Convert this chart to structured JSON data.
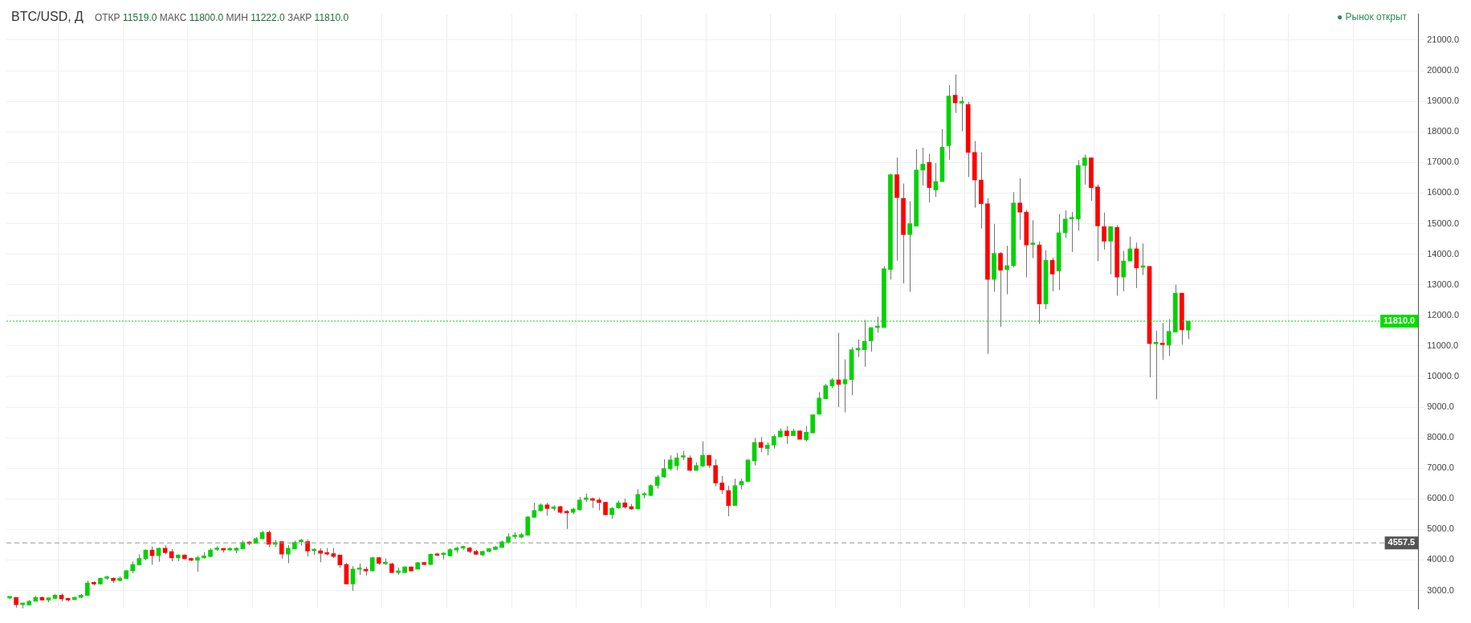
{
  "chart_data": {
    "type": "candlestick",
    "title": "BTC/USD, Д",
    "subtitle": "ОТКР 11519.0 МАКС 11800.0 МИН 11222.0 ЗАКР 11810.0",
    "annotations": [
      "● Рынок открыт"
    ],
    "categories": [
      null,
      null,
      null,
      null,
      null,
      null,
      null,
      null,
      null,
      null,
      null,
      null,
      null,
      null,
      null,
      null,
      null,
      null,
      null,
      null,
      null,
      null,
      null,
      null,
      null,
      null,
      null,
      null,
      null,
      null,
      null,
      null,
      null,
      null,
      null,
      null,
      null,
      null,
      null,
      null,
      null,
      null,
      null,
      null,
      null,
      null,
      null,
      null,
      null,
      null,
      null,
      null,
      null,
      null,
      null,
      null,
      null,
      null,
      null,
      null,
      null,
      null,
      null,
      null,
      null,
      null,
      null,
      null,
      null,
      null,
      null,
      null,
      null,
      null,
      null,
      null,
      null,
      null,
      null,
      null,
      null,
      null,
      null,
      null,
      null,
      null,
      null,
      null,
      null,
      null,
      null,
      null,
      null,
      null,
      null,
      null,
      null,
      null,
      null,
      null,
      null,
      null,
      null,
      null,
      null,
      null,
      null,
      null,
      null,
      null,
      null,
      null,
      null,
      null,
      null,
      null,
      null,
      null,
      null,
      null,
      null,
      null,
      null,
      null,
      null,
      null,
      null,
      null,
      null,
      null,
      null,
      null,
      null,
      null,
      null,
      null,
      null,
      null,
      null,
      null,
      null,
      null,
      null,
      null,
      null,
      null,
      null,
      null,
      null,
      null,
      null,
      null,
      null,
      null,
      null,
      null,
      null,
      null,
      null,
      null,
      null,
      null,
      null,
      null,
      null,
      null,
      null,
      null,
      null,
      null,
      null,
      null,
      null,
      null,
      null,
      null,
      null,
      null,
      null,
      null,
      null,
      null,
      null,
      null,
      null,
      null,
      null,
      null,
      null,
      null,
      null,
      null,
      null,
      null,
      null,
      null,
      null,
      null,
      null,
      null,
      null,
      null,
      null,
      null,
      null,
      null,
      null,
      null,
      null,
      null,
      null,
      null,
      null,
      null,
      null,
      null,
      null,
      null
    ],
    "ohlc": [
      [
        2755,
        2790,
        2720,
        2755
      ],
      [
        2775,
        2775,
        2440,
        2540
      ],
      [
        2540,
        2600,
        2420,
        2540
      ],
      [
        2525,
        2685,
        2510,
        2650
      ],
      [
        2650,
        2825,
        2640,
        2775
      ],
      [
        2775,
        2800,
        2670,
        2690
      ],
      [
        2690,
        2760,
        2620,
        2760
      ],
      [
        2740,
        2885,
        2720,
        2850
      ],
      [
        2850,
        2900,
        2640,
        2725
      ],
      [
        2735,
        2760,
        2640,
        2690
      ],
      [
        2700,
        2800,
        2690,
        2775
      ],
      [
        2775,
        2885,
        2760,
        2850
      ],
      [
        2840,
        3325,
        2840,
        3250
      ],
      [
        3250,
        3300,
        3170,
        3215
      ],
      [
        3215,
        3425,
        3190,
        3400
      ],
      [
        3400,
        3480,
        3350,
        3400
      ],
      [
        3400,
        3435,
        3250,
        3325
      ],
      [
        3325,
        3460,
        3310,
        3400
      ],
      [
        3390,
        3675,
        3380,
        3650
      ],
      [
        3640,
        3950,
        3570,
        3850
      ],
      [
        3840,
        4185,
        3820,
        4050
      ],
      [
        4040,
        4340,
        3990,
        4325
      ],
      [
        4325,
        4440,
        3840,
        4140
      ],
      [
        4140,
        4400,
        3940,
        4385
      ],
      [
        4385,
        4475,
        4190,
        4240
      ],
      [
        4275,
        4360,
        3960,
        4065
      ],
      [
        4065,
        4185,
        3960,
        4160
      ],
      [
        4160,
        4185,
        4025,
        4040
      ],
      [
        4050,
        4075,
        3965,
        3990
      ],
      [
        3990,
        4135,
        3615,
        4075
      ],
      [
        4065,
        4260,
        4045,
        4135
      ],
      [
        4115,
        4385,
        4090,
        4325
      ],
      [
        4340,
        4450,
        4300,
        4345
      ],
      [
        4360,
        4365,
        4240,
        4325
      ],
      [
        4325,
        4410,
        4300,
        4325
      ],
      [
        4315,
        4420,
        4220,
        4385
      ],
      [
        4365,
        4635,
        4340,
        4575
      ],
      [
        4565,
        4615,
        4490,
        4535
      ],
      [
        4540,
        4750,
        4530,
        4700
      ],
      [
        4690,
        4950,
        4675,
        4900
      ],
      [
        4900,
        4960,
        4420,
        4515
      ],
      [
        4515,
        4650,
        4420,
        4575
      ],
      [
        4600,
        4600,
        4040,
        4190
      ],
      [
        4190,
        4485,
        3890,
        4385
      ],
      [
        4365,
        4635,
        4365,
        4575
      ],
      [
        4600,
        4685,
        4470,
        4600
      ],
      [
        4600,
        4675,
        4115,
        4290
      ],
      [
        4300,
        4385,
        4165,
        4300
      ],
      [
        4300,
        4390,
        3925,
        4215
      ],
      [
        4235,
        4390,
        4150,
        4190
      ],
      [
        4210,
        4390,
        4060,
        4115
      ],
      [
        4160,
        4160,
        3740,
        3840
      ],
      [
        3850,
        3900,
        3215,
        3215
      ],
      [
        3215,
        3800,
        2990,
        3700
      ],
      [
        3690,
        3885,
        3510,
        3690
      ],
      [
        3675,
        3775,
        3490,
        3640
      ],
      [
        3640,
        4100,
        3640,
        4075
      ],
      [
        4075,
        4100,
        3840,
        3890
      ],
      [
        3875,
        4050,
        3840,
        3875
      ],
      [
        3875,
        3910,
        3560,
        3590
      ],
      [
        3590,
        3750,
        3515,
        3590
      ],
      [
        3590,
        3790,
        3565,
        3775
      ],
      [
        3775,
        3775,
        3640,
        3640
      ],
      [
        3700,
        3930,
        3690,
        3910
      ],
      [
        3915,
        3930,
        3840,
        3850
      ],
      [
        3850,
        4210,
        3840,
        4185
      ],
      [
        4195,
        4235,
        4130,
        4150
      ],
      [
        4175,
        4245,
        4020,
        4175
      ],
      [
        4130,
        4380,
        4110,
        4335
      ],
      [
        4325,
        4435,
        4240,
        4390
      ],
      [
        4390,
        4460,
        4335,
        4390
      ],
      [
        4390,
        4425,
        4220,
        4280
      ],
      [
        4280,
        4330,
        4165,
        4185
      ],
      [
        4165,
        4310,
        4120,
        4280
      ],
      [
        4280,
        4390,
        4255,
        4370
      ],
      [
        4345,
        4460,
        4335,
        4425
      ],
      [
        4410,
        4630,
        4390,
        4595
      ],
      [
        4580,
        4875,
        4545,
        4760
      ],
      [
        4760,
        4910,
        4690,
        4760
      ],
      [
        4740,
        4890,
        4710,
        4830
      ],
      [
        4810,
        5430,
        4790,
        5405
      ],
      [
        5395,
        5870,
        5385,
        5620
      ],
      [
        5610,
        5845,
        5580,
        5805
      ],
      [
        5805,
        5870,
        5450,
        5680
      ],
      [
        5680,
        5790,
        5610,
        5735
      ],
      [
        5745,
        5770,
        5505,
        5555
      ],
      [
        5590,
        5630,
        5015,
        5540
      ],
      [
        5555,
        5705,
        5500,
        5665
      ],
      [
        5645,
        6065,
        5610,
        5960
      ],
      [
        5980,
        6165,
        5890,
        5980
      ],
      [
        5995,
        6040,
        5700,
        5950
      ],
      [
        5960,
        6040,
        5625,
        5880
      ],
      [
        5890,
        5890,
        5460,
        5475
      ],
      [
        5475,
        5725,
        5350,
        5690
      ],
      [
        5700,
        5940,
        5675,
        5870
      ],
      [
        5870,
        6005,
        5680,
        5725
      ],
      [
        5745,
        5835,
        5635,
        5670
      ],
      [
        5670,
        6310,
        5655,
        6140
      ],
      [
        6120,
        6220,
        6015,
        6120
      ],
      [
        6105,
        6470,
        6085,
        6435
      ],
      [
        6435,
        6775,
        6335,
        6715
      ],
      [
        6715,
        7295,
        6685,
        6990
      ],
      [
        6980,
        7420,
        6925,
        7270
      ],
      [
        7080,
        7500,
        6935,
        7340
      ],
      [
        7360,
        7565,
        7270,
        7360
      ],
      [
        7340,
        7420,
        6910,
        6930
      ],
      [
        6930,
        7190,
        6930,
        7090
      ],
      [
        7070,
        7880,
        7035,
        7420
      ],
      [
        7420,
        7420,
        7010,
        7090
      ],
      [
        7090,
        7290,
        6410,
        6515
      ],
      [
        6515,
        6750,
        6160,
        6290
      ],
      [
        6265,
        6425,
        5430,
        5780
      ],
      [
        5780,
        6660,
        5780,
        6435
      ],
      [
        6455,
        6660,
        6310,
        6570
      ],
      [
        6570,
        7270,
        6570,
        7270
      ],
      [
        7240,
        7995,
        7090,
        7845
      ],
      [
        7845,
        8020,
        7520,
        7675
      ],
      [
        7645,
        7845,
        7420,
        7755
      ],
      [
        7755,
        8105,
        7645,
        8040
      ],
      [
        8025,
        8300,
        8015,
        8220
      ],
      [
        8220,
        8370,
        7800,
        8065
      ],
      [
        8065,
        8290,
        8065,
        8220
      ],
      [
        8220,
        8240,
        7945,
        7945
      ],
      [
        7935,
        8380,
        7870,
        8175
      ],
      [
        8155,
        8750,
        8140,
        8750
      ],
      [
        8765,
        9485,
        8755,
        9295
      ],
      [
        9270,
        9755,
        9260,
        9700
      ],
      [
        9690,
        9950,
        9620,
        9890
      ],
      [
        9890,
        11430,
        9000,
        9740
      ],
      [
        9760,
        10560,
        8830,
        9900
      ],
      [
        9900,
        10960,
        9390,
        10875
      ],
      [
        10870,
        11210,
        10640,
        10870
      ],
      [
        10875,
        11850,
        10320,
        11150
      ],
      [
        11165,
        11600,
        10815,
        11600
      ],
      [
        11600,
        11960,
        11430,
        11600
      ],
      [
        11600,
        13610,
        11600,
        13525
      ],
      [
        13500,
        16630,
        13170,
        16600
      ],
      [
        16600,
        17160,
        13790,
        15850
      ],
      [
        15825,
        16310,
        13040,
        14640
      ],
      [
        14640,
        15730,
        12770,
        15000
      ],
      [
        14915,
        17430,
        14915,
        16750
      ],
      [
        16750,
        17480,
        16240,
        16950
      ],
      [
        17000,
        17280,
        15690,
        16175
      ],
      [
        16100,
        16980,
        15870,
        16375
      ],
      [
        16375,
        18090,
        16375,
        17500
      ],
      [
        17550,
        19530,
        17090,
        19175
      ],
      [
        19200,
        19880,
        18620,
        18950
      ],
      [
        18940,
        19150,
        18020,
        18940
      ],
      [
        18900,
        18980,
        16520,
        17325
      ],
      [
        17325,
        17700,
        15520,
        16425
      ],
      [
        16425,
        17330,
        14840,
        15650
      ],
      [
        15650,
        15830,
        10740,
        13175
      ],
      [
        13175,
        14990,
        12770,
        14025
      ],
      [
        14025,
        14070,
        11620,
        13475
      ],
      [
        13500,
        14275,
        12690,
        13625
      ],
      [
        13625,
        16030,
        13570,
        15675
      ],
      [
        15675,
        16480,
        14470,
        15375
      ],
      [
        15375,
        15450,
        13240,
        14300
      ],
      [
        14315,
        15110,
        13870,
        14315
      ],
      [
        14300,
        14410,
        11720,
        12375
      ],
      [
        12375,
        14130,
        12200,
        13800
      ],
      [
        13800,
        13890,
        12790,
        13350
      ],
      [
        13450,
        15310,
        12825,
        14700
      ],
      [
        14700,
        15430,
        14540,
        15150
      ],
      [
        15150,
        15380,
        14070,
        15150
      ],
      [
        15150,
        17075,
        14770,
        16900
      ],
      [
        16900,
        17260,
        16270,
        17150
      ],
      [
        17150,
        17150,
        15740,
        16175
      ],
      [
        16200,
        16280,
        13770,
        14925
      ],
      [
        14900,
        15360,
        14150,
        14425
      ],
      [
        14425,
        14900,
        13340,
        14900
      ],
      [
        14875,
        14950,
        12640,
        13250
      ],
      [
        13250,
        14100,
        12790,
        13775
      ],
      [
        13775,
        14575,
        13770,
        14175
      ],
      [
        14175,
        14375,
        12890,
        13550
      ],
      [
        13570,
        14350,
        13320,
        13570
      ],
      [
        13600,
        13600,
        9975,
        11075
      ],
      [
        11070,
        11500,
        9250,
        11070
      ],
      [
        11090,
        11750,
        10540,
        11040
      ],
      [
        11025,
        11875,
        10670,
        11475
      ],
      [
        11450,
        13000,
        11450,
        12725
      ],
      [
        12725,
        12725,
        11040,
        11525
      ],
      [
        11519,
        11810,
        11222,
        11810
      ],
      null,
      null,
      null,
      null,
      null,
      null,
      null,
      null,
      null,
      null,
      null,
      null,
      null,
      null,
      null,
      null,
      null,
      null,
      null,
      null,
      null,
      null,
      null,
      null,
      null,
      null,
      null,
      null,
      null,
      null,
      null,
      null,
      null,
      null,
      null
    ],
    "colors": [
      "#00d200",
      "#ff0000",
      "#00d200",
      "#00d200",
      "#00d200",
      "#ff0000",
      "#00d200",
      "#00d200",
      "#ff0000",
      "#ff0000",
      "#00d200",
      "#00d200",
      "#00d200",
      "#ff0000",
      "#00d200",
      "#00d200",
      "#ff0000",
      "#00d200",
      "#00d200",
      "#00d200",
      "#00d200",
      "#00d200",
      "#ff0000",
      "#00d200",
      "#ff0000",
      "#ff0000",
      "#00d200",
      "#ff0000",
      "#ff0000",
      "#00d200",
      "#00d200",
      "#00d200",
      "#00d200",
      "#ff0000",
      "#00d200",
      "#00d200",
      "#00d200",
      "#ff0000",
      "#00d200",
      "#00d200",
      "#ff0000",
      "#00d200",
      "#ff0000",
      "#00d200",
      "#00d200",
      "#00d200",
      "#ff0000",
      "#00d200",
      "#ff0000",
      "#ff0000",
      "#ff0000",
      "#ff0000",
      "#ff0000",
      "#00d200",
      "#00d200",
      "#ff0000",
      "#00d200",
      "#ff0000",
      "#00d200",
      "#ff0000",
      "#00d200",
      "#00d200",
      "#ff0000",
      "#00d200",
      "#ff0000",
      "#00d200",
      "#ff0000",
      "#00d200",
      "#00d200",
      "#00d200",
      "#00d200",
      "#ff0000",
      "#ff0000",
      "#00d200",
      "#00d200",
      "#00d200",
      "#00d200",
      "#00d200",
      "#00d200",
      "#00d200",
      "#00d200",
      "#00d200",
      "#00d200",
      "#ff0000",
      "#00d200",
      "#ff0000",
      "#ff0000",
      "#00d200",
      "#00d200",
      "#00d200",
      "#ff0000",
      "#ff0000",
      "#ff0000",
      "#00d200",
      "#00d200",
      "#ff0000",
      "#ff0000",
      "#00d200",
      "#00d200",
      "#00d200",
      "#00d200",
      "#00d200",
      "#00d200",
      "#00d200",
      "#00d200",
      "#ff0000",
      "#00d200",
      "#00d200",
      "#ff0000",
      "#ff0000",
      "#ff0000",
      "#ff0000",
      "#00d200",
      "#00d200",
      "#00d200",
      "#00d200",
      "#ff0000",
      "#00d200",
      "#00d200",
      "#00d200",
      "#ff0000",
      "#00d200",
      "#ff0000",
      "#00d200",
      "#00d200",
      "#00d200",
      "#00d200",
      "#00d200",
      "#ff0000",
      "#00d200",
      "#00d200",
      "#00d200",
      "#00d200",
      "#00d200",
      "#00d200",
      "#00d200",
      "#00d200",
      "#ff0000",
      "#ff0000",
      "#00d200",
      "#00d200",
      "#00d200",
      "#ff0000",
      "#00d200",
      "#00d200",
      "#00d200",
      "#ff0000",
      "#00d200",
      "#ff0000",
      "#ff0000",
      "#ff0000",
      "#ff0000",
      "#00d200",
      "#ff0000",
      "#00d200",
      "#00d200",
      "#ff0000",
      "#ff0000",
      "#00d200",
      "#ff0000",
      "#00d200",
      "#ff0000",
      "#00d200",
      "#00d200",
      "#00d200",
      "#00d200",
      "#00d200",
      "#ff0000",
      "#ff0000",
      "#ff0000",
      "#00d200",
      "#ff0000",
      "#00d200",
      "#00d200",
      "#ff0000",
      "#00d200",
      "#ff0000",
      "#00d200",
      "#ff0000",
      "#00d200",
      "#00d200",
      "#ff0000",
      "#00d200",
      null,
      null,
      null,
      null,
      null,
      null,
      null,
      null,
      null,
      null,
      null,
      null,
      null,
      null,
      null,
      null,
      null,
      null,
      null,
      null,
      null,
      null,
      null,
      null,
      null,
      null,
      null,
      null,
      null,
      null,
      null,
      null,
      null,
      null,
      null
    ],
    "ylim": [
      2400,
      21850
    ],
    "yticks": [
      {
        "value": 3000,
        "label": "3000.0"
      },
      {
        "value": 4000,
        "label": "4000.0"
      },
      {
        "value": 5000,
        "label": "5000.0"
      },
      {
        "value": 6000,
        "label": "6000.0"
      },
      {
        "value": 7000,
        "label": "7000.0"
      },
      {
        "value": 8000,
        "label": "8000.0"
      },
      {
        "value": 9000,
        "label": "9000.0"
      },
      {
        "value": 10000,
        "label": "10000.0"
      },
      {
        "value": 11000,
        "label": "11000.0"
      },
      {
        "value": 12000,
        "label": "12000.0"
      },
      {
        "value": 13000,
        "label": "13000.0"
      },
      {
        "value": 14000,
        "label": "14000.0"
      },
      {
        "value": 15000,
        "label": "15000.0"
      },
      {
        "value": 16000,
        "label": "16000.0"
      },
      {
        "value": 17000,
        "label": "17000.0"
      },
      {
        "value": 18000,
        "label": "18000.0"
      },
      {
        "value": 19000,
        "label": "19000.0"
      },
      {
        "value": 20000,
        "label": "20000.0"
      },
      {
        "value": 21000,
        "label": "21000.0"
      }
    ],
    "ref_lines": [
      {
        "axis": "y",
        "value": 11810,
        "label": "11810.0",
        "color": "#00dd00",
        "line_style": "dotted"
      },
      {
        "axis": "y",
        "value": 4557.5,
        "label": "4557.5",
        "color": "#999999",
        "line_style": "dashed"
      }
    ],
    "grid": true,
    "tick_labels": "y"
  }
}
